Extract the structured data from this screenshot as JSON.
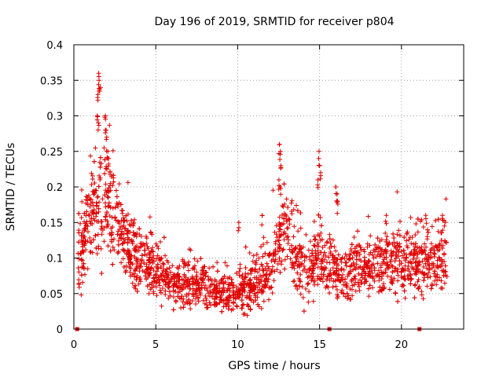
{
  "chart_data": {
    "type": "scatter",
    "title": "Day 196 of 2019, SRMTID for receiver p804",
    "xlabel": "GPS time / hours",
    "ylabel": "SRMTID / TECUs",
    "xlim": [
      0,
      23.8
    ],
    "ylim": [
      0,
      0.4
    ],
    "xticks": [
      0,
      5,
      10,
      15,
      20
    ],
    "xtick_labels": [
      "0",
      "5",
      "10",
      "15",
      "20"
    ],
    "yticks": [
      0,
      0.05,
      0.1,
      0.15,
      0.2,
      0.25,
      0.3,
      0.35,
      0.4
    ],
    "ytick_labels": [
      "0",
      "0.05",
      "0.1",
      "0.15",
      "0.2",
      "0.25",
      "0.3",
      "0.35",
      "0.4"
    ],
    "grid": true,
    "marker": "+",
    "color": "#e00000",
    "zero_markers_x": [
      0.2,
      15.6,
      21.1
    ],
    "series": [
      {
        "name": "SRMTID",
        "profile": [
          [
            0.2,
            0.1,
            0.035
          ],
          [
            0.6,
            0.11,
            0.035
          ],
          [
            1.0,
            0.16,
            0.04
          ],
          [
            1.4,
            0.17,
            0.05
          ],
          [
            1.8,
            0.18,
            0.06
          ],
          [
            2.2,
            0.16,
            0.05
          ],
          [
            2.6,
            0.15,
            0.04
          ],
          [
            3.0,
            0.13,
            0.04
          ],
          [
            3.5,
            0.11,
            0.035
          ],
          [
            4.0,
            0.1,
            0.03
          ],
          [
            5.0,
            0.08,
            0.028
          ],
          [
            6.0,
            0.065,
            0.022
          ],
          [
            7.0,
            0.06,
            0.022
          ],
          [
            8.0,
            0.06,
            0.022
          ],
          [
            9.0,
            0.055,
            0.022
          ],
          [
            10.0,
            0.05,
            0.02
          ],
          [
            11.0,
            0.06,
            0.022
          ],
          [
            12.0,
            0.08,
            0.028
          ],
          [
            12.6,
            0.13,
            0.035
          ],
          [
            13.0,
            0.14,
            0.04
          ],
          [
            13.5,
            0.11,
            0.035
          ],
          [
            14.0,
            0.09,
            0.03
          ],
          [
            14.5,
            0.08,
            0.03
          ],
          [
            15.0,
            0.1,
            0.04
          ],
          [
            15.5,
            0.09,
            0.035
          ],
          [
            16.0,
            0.08,
            0.03
          ],
          [
            17.0,
            0.08,
            0.03
          ],
          [
            18.0,
            0.085,
            0.03
          ],
          [
            19.0,
            0.09,
            0.03
          ],
          [
            20.0,
            0.095,
            0.03
          ],
          [
            21.0,
            0.09,
            0.03
          ],
          [
            22.0,
            0.095,
            0.03
          ],
          [
            22.8,
            0.1,
            0.035
          ]
        ],
        "spikes": [
          [
            1.45,
            0.33
          ],
          [
            1.5,
            0.36
          ],
          [
            1.55,
            0.35
          ],
          [
            1.6,
            0.34
          ],
          [
            1.9,
            0.3
          ],
          [
            1.95,
            0.28
          ],
          [
            2.0,
            0.27
          ],
          [
            2.05,
            0.25
          ],
          [
            1.45,
            0.3
          ],
          [
            1.5,
            0.29
          ],
          [
            2.1,
            0.24
          ],
          [
            2.2,
            0.22
          ],
          [
            12.55,
            0.26
          ],
          [
            12.6,
            0.25
          ],
          [
            12.65,
            0.23
          ],
          [
            12.5,
            0.21
          ],
          [
            12.6,
            0.2
          ],
          [
            14.95,
            0.25
          ],
          [
            15.0,
            0.23
          ],
          [
            15.05,
            0.22
          ],
          [
            14.9,
            0.21
          ],
          [
            16.0,
            0.2
          ],
          [
            16.05,
            0.19
          ],
          [
            16.1,
            0.18
          ],
          [
            10.05,
            0.15
          ],
          [
            11.5,
            0.16
          ],
          [
            19.05,
            0.16
          ],
          [
            21.5,
            0.16
          ],
          [
            22.5,
            0.16
          ]
        ]
      }
    ]
  }
}
